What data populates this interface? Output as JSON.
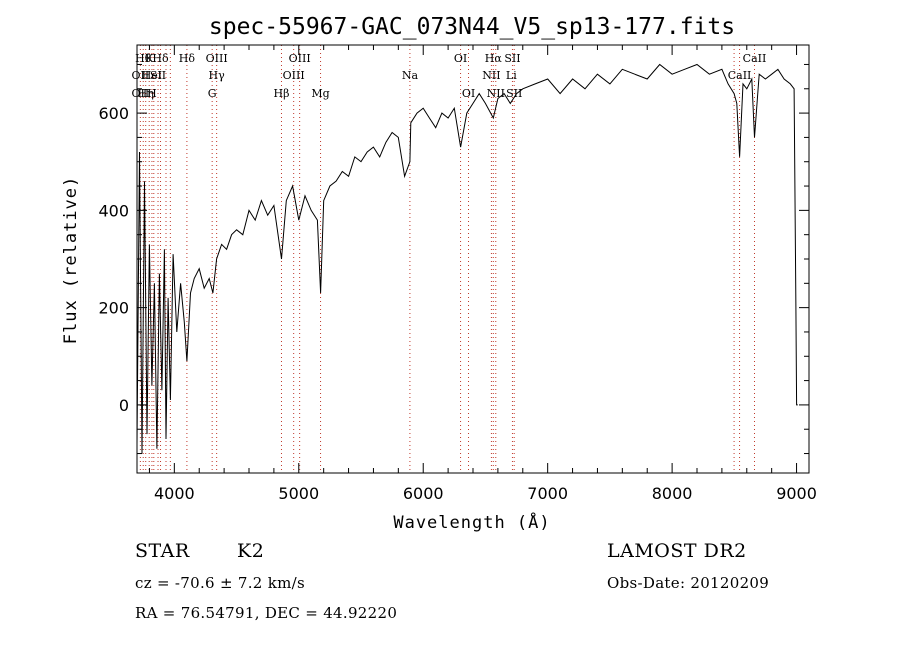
{
  "chart_data": {
    "type": "line",
    "title": "spec-55967-GAC_073N44_V5_sp13-177.fits",
    "xlabel": "Wavelength (Å)",
    "ylabel": "Flux (relative)",
    "xlim": [
      3700,
      9100
    ],
    "ylim": [
      -140,
      740
    ],
    "x_ticks": [
      4000,
      5000,
      6000,
      7000,
      8000,
      9000
    ],
    "y_ticks": [
      0,
      200,
      400,
      600
    ],
    "grid": false,
    "series": [
      {
        "x": [
          3700,
          3720,
          3740,
          3760,
          3780,
          3800,
          3820,
          3840,
          3860,
          3880,
          3900,
          3920,
          3933,
          3950,
          3968,
          3990,
          4020,
          4050,
          4080,
          4101,
          4130,
          4160,
          4200,
          4240,
          4280,
          4310,
          4340,
          4380,
          4420,
          4460,
          4500,
          4550,
          4600,
          4650,
          4700,
          4750,
          4800,
          4861,
          4900,
          4950,
          5000,
          5050,
          5100,
          5150,
          5175,
          5200,
          5250,
          5300,
          5350,
          5400,
          5450,
          5500,
          5550,
          5600,
          5650,
          5700,
          5750,
          5800,
          5850,
          5893,
          5900,
          5950,
          6000,
          6050,
          6100,
          6150,
          6200,
          6250,
          6300,
          6350,
          6400,
          6450,
          6500,
          6563,
          6600,
          6650,
          6700,
          6750,
          6800,
          6900,
          7000,
          7100,
          7200,
          7300,
          7400,
          7500,
          7600,
          7700,
          7800,
          7900,
          8000,
          8100,
          8200,
          8300,
          8400,
          8450,
          8498,
          8520,
          8542,
          8570,
          8600,
          8640,
          8662,
          8700,
          8750,
          8800,
          8850,
          8900,
          8950,
          8980,
          8995,
          9000,
          9010
        ],
        "y": [
          -80,
          520,
          -100,
          460,
          -60,
          330,
          40,
          250,
          -90,
          270,
          30,
          320,
          -70,
          220,
          10,
          310,
          150,
          250,
          170,
          90,
          230,
          260,
          280,
          240,
          260,
          230,
          300,
          330,
          320,
          350,
          360,
          350,
          400,
          380,
          420,
          390,
          410,
          300,
          420,
          450,
          380,
          430,
          400,
          380,
          230,
          420,
          450,
          460,
          480,
          470,
          510,
          500,
          520,
          530,
          510,
          540,
          560,
          550,
          470,
          500,
          580,
          600,
          610,
          590,
          570,
          600,
          590,
          610,
          530,
          600,
          620,
          640,
          620,
          590,
          630,
          640,
          620,
          640,
          650,
          660,
          670,
          640,
          670,
          650,
          680,
          660,
          690,
          680,
          670,
          700,
          680,
          690,
          700,
          680,
          690,
          660,
          640,
          620,
          510,
          660,
          650,
          670,
          550,
          680,
          670,
          680,
          690,
          670,
          660,
          650,
          200,
          0,
          0
        ]
      }
    ],
    "line_annotations": [
      {
        "x": 3750,
        "label": "Hθ",
        "row": 1
      },
      {
        "x": 3798,
        "label": "K",
        "row": 1
      },
      {
        "x": 3889,
        "label": "Hδ",
        "row": 1
      },
      {
        "x": 3727,
        "label": "OII",
        "row": 2
      },
      {
        "x": 3820,
        "label": "HeI",
        "row": 2
      },
      {
        "x": 3869,
        "label": "SII",
        "row": 2
      },
      {
        "x": 3727,
        "label": "OII",
        "row": 3
      },
      {
        "x": 3770,
        "label": "Hη",
        "row": 3
      },
      {
        "x": 3820,
        "label": "H",
        "row": 3
      },
      {
        "x": 4101,
        "label": "Hδ",
        "row": 1
      },
      {
        "x": 4340,
        "label": "OIII",
        "row": 1
      },
      {
        "x": 4340,
        "label": "Hγ",
        "row": 2
      },
      {
        "x": 4304,
        "label": "G",
        "row": 3
      },
      {
        "x": 4861,
        "label": "Hβ",
        "row": 3
      },
      {
        "x": 4959,
        "label": "OIII",
        "row": 2
      },
      {
        "x": 5007,
        "label": "OIII",
        "row": 1
      },
      {
        "x": 5175,
        "label": "Mg",
        "row": 3
      },
      {
        "x": 5893,
        "label": "Na",
        "row": 2
      },
      {
        "x": 6300,
        "label": "OI",
        "row": 1
      },
      {
        "x": 6364,
        "label": "OI",
        "row": 3
      },
      {
        "x": 6563,
        "label": "Hα",
        "row": 1
      },
      {
        "x": 6548,
        "label": "NII",
        "row": 2
      },
      {
        "x": 6583,
        "label": "NII",
        "row": 3
      },
      {
        "x": 6717,
        "label": "SII",
        "row": 1
      },
      {
        "x": 6708,
        "label": "Li",
        "row": 2
      },
      {
        "x": 6731,
        "label": "SII",
        "row": 3
      },
      {
        "x": 8542,
        "label": "CaII",
        "row": 2
      },
      {
        "x": 8662,
        "label": "CaII",
        "row": 1
      }
    ],
    "annotation_lines_x": [
      3727,
      3750,
      3770,
      3798,
      3820,
      3835,
      3869,
      3889,
      3933,
      3968,
      4101,
      4304,
      4340,
      4861,
      4959,
      5007,
      5175,
      5893,
      6300,
      6364,
      6548,
      6563,
      6583,
      6717,
      6731,
      8498,
      8542,
      8662
    ],
    "line_color": "#000000",
    "annotation_line_color": "#c0392b"
  },
  "footer": {
    "object_type": "STAR",
    "subclass": "K2",
    "survey": "LAMOST DR2",
    "cz": "cz = -70.6 ± 7.2 km/s",
    "obs_date": "Obs-Date: 20120209",
    "coords": "RA =  76.54791, DEC =  44.92220"
  }
}
